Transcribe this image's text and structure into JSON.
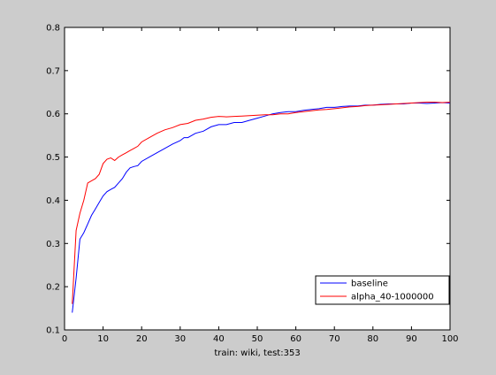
{
  "chart_data": {
    "type": "line",
    "title": "",
    "xlabel": "train: wiki, test:353",
    "ylabel": "",
    "xlim": [
      0,
      100
    ],
    "ylim": [
      0.1,
      0.8
    ],
    "xticks": [
      0,
      10,
      20,
      30,
      40,
      50,
      60,
      70,
      80,
      90,
      100
    ],
    "yticks": [
      0.1,
      0.2,
      0.3,
      0.4,
      0.5,
      0.6,
      0.7,
      0.8
    ],
    "grid": false,
    "legend_position": "bottom-right",
    "series": [
      {
        "name": "baseline",
        "color": "#0000ff",
        "x": [
          2,
          3,
          4,
          5,
          6,
          7,
          8,
          9,
          10,
          11,
          12,
          13,
          14,
          15,
          16,
          17,
          18,
          19,
          20,
          22,
          24,
          26,
          28,
          30,
          31,
          32,
          34,
          36,
          38,
          40,
          42,
          44,
          46,
          48,
          50,
          52,
          54,
          56,
          58,
          60,
          62,
          64,
          66,
          68,
          70,
          72,
          74,
          76,
          78,
          80,
          82,
          84,
          86,
          88,
          90,
          92,
          94,
          96,
          98,
          100
        ],
        "y": [
          0.14,
          0.22,
          0.31,
          0.325,
          0.345,
          0.365,
          0.38,
          0.395,
          0.41,
          0.42,
          0.425,
          0.43,
          0.44,
          0.45,
          0.465,
          0.475,
          0.478,
          0.48,
          0.49,
          0.5,
          0.51,
          0.52,
          0.53,
          0.538,
          0.545,
          0.545,
          0.555,
          0.56,
          0.57,
          0.575,
          0.575,
          0.58,
          0.58,
          0.585,
          0.59,
          0.595,
          0.6,
          0.603,
          0.605,
          0.605,
          0.608,
          0.61,
          0.612,
          0.615,
          0.615,
          0.617,
          0.618,
          0.618,
          0.62,
          0.62,
          0.622,
          0.623,
          0.623,
          0.623,
          0.625,
          0.625,
          0.624,
          0.625,
          0.626,
          0.625
        ]
      },
      {
        "name": "alpha_40-1000000",
        "color": "#ff0000",
        "x": [
          2,
          3,
          4,
          5,
          6,
          7,
          8,
          9,
          10,
          11,
          12,
          13,
          14,
          15,
          16,
          17,
          18,
          19,
          20,
          22,
          24,
          26,
          28,
          30,
          32,
          34,
          36,
          38,
          40,
          42,
          44,
          46,
          48,
          50,
          52,
          54,
          56,
          58,
          60,
          62,
          64,
          66,
          68,
          70,
          72,
          74,
          76,
          78,
          80,
          82,
          84,
          86,
          88,
          90,
          92,
          94,
          96,
          98,
          100
        ],
        "y": [
          0.16,
          0.33,
          0.37,
          0.4,
          0.44,
          0.445,
          0.45,
          0.46,
          0.485,
          0.495,
          0.498,
          0.492,
          0.5,
          0.505,
          0.51,
          0.515,
          0.52,
          0.525,
          0.535,
          0.545,
          0.555,
          0.563,
          0.568,
          0.575,
          0.578,
          0.585,
          0.588,
          0.592,
          0.594,
          0.593,
          0.594,
          0.595,
          0.596,
          0.597,
          0.598,
          0.598,
          0.6,
          0.6,
          0.603,
          0.605,
          0.607,
          0.609,
          0.61,
          0.612,
          0.614,
          0.616,
          0.617,
          0.619,
          0.62,
          0.621,
          0.622,
          0.623,
          0.624,
          0.625,
          0.626,
          0.627,
          0.627,
          0.626,
          0.627
        ]
      }
    ]
  }
}
